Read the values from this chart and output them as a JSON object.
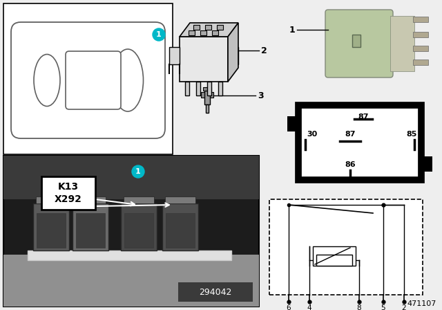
{
  "bg_color": "#eeeeee",
  "white": "#ffffff",
  "black": "#000000",
  "gray_line": "#888888",
  "cyan_badge": "#00b8c8",
  "relay_green": "#b8c8a0",
  "relay_green_dark": "#a0b088",
  "photo_bg": "#2a2a2a",
  "photo_shelf": "#888888",
  "part_number": "471107",
  "ref_number": "294042",
  "pin_top": [
    "6",
    "4",
    "8",
    "5",
    "2"
  ],
  "pin_bot": [
    "30",
    "85",
    "86",
    "87",
    "87"
  ]
}
